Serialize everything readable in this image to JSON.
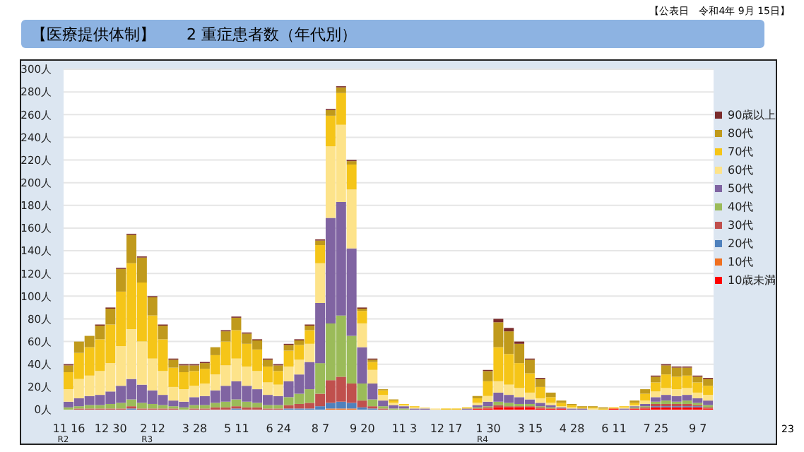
{
  "chart_data": {
    "type": "bar",
    "stacked": true,
    "title": "【医療提供体制】　　2 重症患者数（年代別）",
    "annotations": [
      "【公表日　令和4年 9月 15日】",
      "23"
    ],
    "categories": [
      "11 16$_{R2}$",
      null,
      null,
      null,
      "12 30",
      null,
      null,
      null,
      "2 12$_{R3}$",
      null,
      null,
      null,
      "3 28",
      null,
      null,
      null,
      "5 11",
      null,
      null,
      null,
      "6 24",
      null,
      null,
      null,
      "8 7",
      null,
      null,
      null,
      "9 20",
      null,
      null,
      null,
      "11 3",
      null,
      null,
      null,
      "12 17",
      null,
      null,
      null,
      "1 30$_{R4}$",
      null,
      null,
      null,
      "3 15",
      null,
      null,
      null,
      "4 28",
      null,
      null,
      null,
      "6 11",
      null,
      null,
      null,
      "7 25",
      null,
      null,
      null,
      "9 7",
      null
    ],
    "series": [
      {
        "name": "10歳未満",
        "color": "#ff0000",
        "values": [
          0,
          0,
          0,
          0,
          0,
          0,
          0,
          0,
          0,
          0,
          0,
          0,
          0,
          0,
          0,
          0,
          0,
          0,
          0,
          0,
          0,
          0,
          0,
          0,
          0,
          0,
          0,
          0,
          0,
          0,
          0,
          0,
          0,
          0,
          0,
          0,
          0,
          0,
          0,
          1,
          1,
          2,
          2,
          2,
          2,
          1,
          1,
          1,
          0,
          0,
          0,
          0,
          1,
          0,
          1,
          1,
          2,
          2,
          2,
          2,
          2,
          1
        ]
      },
      {
        "name": "10代",
        "color": "#f07020",
        "values": [
          0,
          0,
          0,
          0,
          0,
          0,
          0,
          0,
          0,
          0,
          0,
          0,
          0,
          0,
          0,
          0,
          0,
          0,
          0,
          0,
          0,
          0,
          0,
          0,
          0,
          1,
          1,
          1,
          0,
          0,
          0,
          0,
          0,
          0,
          0,
          0,
          0,
          0,
          0,
          0,
          0,
          0,
          0,
          0,
          0,
          0,
          0,
          0,
          0,
          0,
          0,
          0,
          0,
          0,
          0,
          0,
          0,
          0,
          0,
          0,
          0,
          0
        ]
      },
      {
        "name": "20代",
        "color": "#4f81bd",
        "values": [
          0,
          0,
          0,
          0,
          0,
          0,
          1,
          0,
          0,
          0,
          0,
          0,
          0,
          0,
          0,
          0,
          1,
          0,
          0,
          0,
          0,
          1,
          1,
          1,
          3,
          5,
          6,
          5,
          2,
          1,
          0,
          0,
          0,
          0,
          0,
          0,
          0,
          0,
          0,
          0,
          0,
          0,
          0,
          0,
          0,
          0,
          0,
          0,
          0,
          0,
          0,
          0,
          0,
          0,
          0,
          0,
          1,
          1,
          1,
          1,
          1,
          0
        ]
      },
      {
        "name": "30代",
        "color": "#c0504d",
        "values": [
          0,
          1,
          1,
          1,
          1,
          1,
          2,
          1,
          1,
          1,
          1,
          0,
          1,
          1,
          2,
          2,
          2,
          2,
          2,
          1,
          1,
          3,
          4,
          5,
          11,
          20,
          22,
          17,
          6,
          2,
          1,
          0,
          0,
          0,
          0,
          0,
          0,
          0,
          0,
          0,
          1,
          2,
          1,
          1,
          1,
          1,
          0,
          0,
          0,
          0,
          0,
          0,
          0,
          0,
          0,
          1,
          2,
          2,
          2,
          2,
          1,
          1
        ]
      },
      {
        "name": "40代",
        "color": "#9bbb59",
        "values": [
          2,
          2,
          3,
          3,
          4,
          5,
          6,
          5,
          4,
          3,
          2,
          2,
          3,
          3,
          4,
          5,
          6,
          5,
          4,
          3,
          3,
          7,
          9,
          12,
          27,
          50,
          54,
          42,
          15,
          6,
          2,
          1,
          1,
          0,
          0,
          0,
          0,
          0,
          0,
          1,
          1,
          3,
          3,
          2,
          2,
          1,
          1,
          0,
          0,
          0,
          0,
          0,
          0,
          0,
          1,
          1,
          2,
          3,
          2,
          3,
          2,
          2
        ]
      },
      {
        "name": "50代",
        "color": "#8064a2",
        "values": [
          5,
          7,
          8,
          9,
          11,
          15,
          18,
          16,
          12,
          9,
          5,
          5,
          7,
          8,
          11,
          14,
          16,
          14,
          12,
          9,
          8,
          14,
          17,
          24,
          53,
          93,
          100,
          77,
          32,
          14,
          5,
          3,
          2,
          1,
          1,
          0,
          0,
          0,
          1,
          2,
          4,
          8,
          7,
          6,
          4,
          3,
          2,
          1,
          1,
          1,
          0,
          0,
          0,
          1,
          1,
          2,
          4,
          5,
          5,
          5,
          4,
          4
        ]
      },
      {
        "name": "60代",
        "color": "#fde38a",
        "values": [
          11,
          17,
          18,
          21,
          25,
          35,
          44,
          38,
          28,
          21,
          12,
          11,
          10,
          11,
          14,
          18,
          20,
          17,
          16,
          11,
          10,
          13,
          13,
          16,
          35,
          63,
          68,
          52,
          21,
          12,
          5,
          2,
          1,
          1,
          1,
          1,
          0,
          0,
          0,
          2,
          5,
          10,
          9,
          8,
          6,
          4,
          2,
          1,
          1,
          0,
          1,
          0,
          0,
          1,
          1,
          3,
          5,
          6,
          6,
          6,
          5,
          5
        ]
      },
      {
        "name": "70代",
        "color": "#f5c518",
        "values": [
          15,
          23,
          25,
          28,
          34,
          48,
          58,
          52,
          38,
          28,
          17,
          15,
          13,
          13,
          17,
          21,
          25,
          20,
          19,
          14,
          12,
          14,
          13,
          12,
          16,
          27,
          28,
          22,
          11,
          7,
          4,
          2,
          1,
          1,
          0,
          0,
          1,
          1,
          1,
          4,
          13,
          30,
          27,
          22,
          17,
          10,
          5,
          3,
          2,
          1,
          1,
          1,
          1,
          1,
          2,
          6,
          8,
          12,
          11,
          11,
          9,
          8
        ]
      },
      {
        "name": "80代",
        "color": "#c09a1c",
        "values": [
          6,
          10,
          10,
          12,
          14,
          20,
          25,
          22,
          16,
          12,
          7,
          6,
          5,
          5,
          7,
          9,
          11,
          9,
          8,
          6,
          5,
          5,
          4,
          4,
          4,
          5,
          5,
          3,
          2,
          2,
          1,
          1,
          0,
          0,
          0,
          0,
          0,
          0,
          0,
          2,
          9,
          22,
          20,
          17,
          12,
          7,
          4,
          2,
          1,
          1,
          1,
          1,
          0,
          0,
          2,
          4,
          5,
          8,
          8,
          7,
          5,
          6
        ]
      },
      {
        "name": "90歳以上",
        "color": "#7b2c2c",
        "values": [
          1,
          0,
          0,
          1,
          1,
          1,
          1,
          1,
          1,
          1,
          1,
          1,
          1,
          1,
          0,
          1,
          1,
          1,
          1,
          1,
          1,
          1,
          1,
          1,
          1,
          1,
          1,
          1,
          1,
          1,
          0,
          0,
          0,
          0,
          0,
          0,
          0,
          0,
          0,
          0,
          1,
          3,
          3,
          2,
          1,
          1,
          0,
          0,
          0,
          0,
          0,
          0,
          0,
          0,
          0,
          0,
          1,
          1,
          1,
          1,
          1,
          1
        ]
      }
    ],
    "ylim": [
      0,
      300
    ],
    "yticks": [
      {
        "value": 0,
        "label": "0人"
      },
      {
        "value": 20,
        "label": "20人"
      },
      {
        "value": 40,
        "label": "40人"
      },
      {
        "value": 60,
        "label": "60人"
      },
      {
        "value": 80,
        "label": "80人"
      },
      {
        "value": 100,
        "label": "100人"
      },
      {
        "value": 120,
        "label": "120人"
      },
      {
        "value": 140,
        "label": "140人"
      },
      {
        "value": 160,
        "label": "160人"
      },
      {
        "value": 180,
        "label": "180人"
      },
      {
        "value": 200,
        "label": "200人"
      },
      {
        "value": 220,
        "label": "220人"
      },
      {
        "value": 240,
        "label": "240人"
      },
      {
        "value": 260,
        "label": "260人"
      },
      {
        "value": 280,
        "label": "280人"
      },
      {
        "value": 300,
        "label": "300人"
      }
    ],
    "grid": "y",
    "legend": "right"
  }
}
